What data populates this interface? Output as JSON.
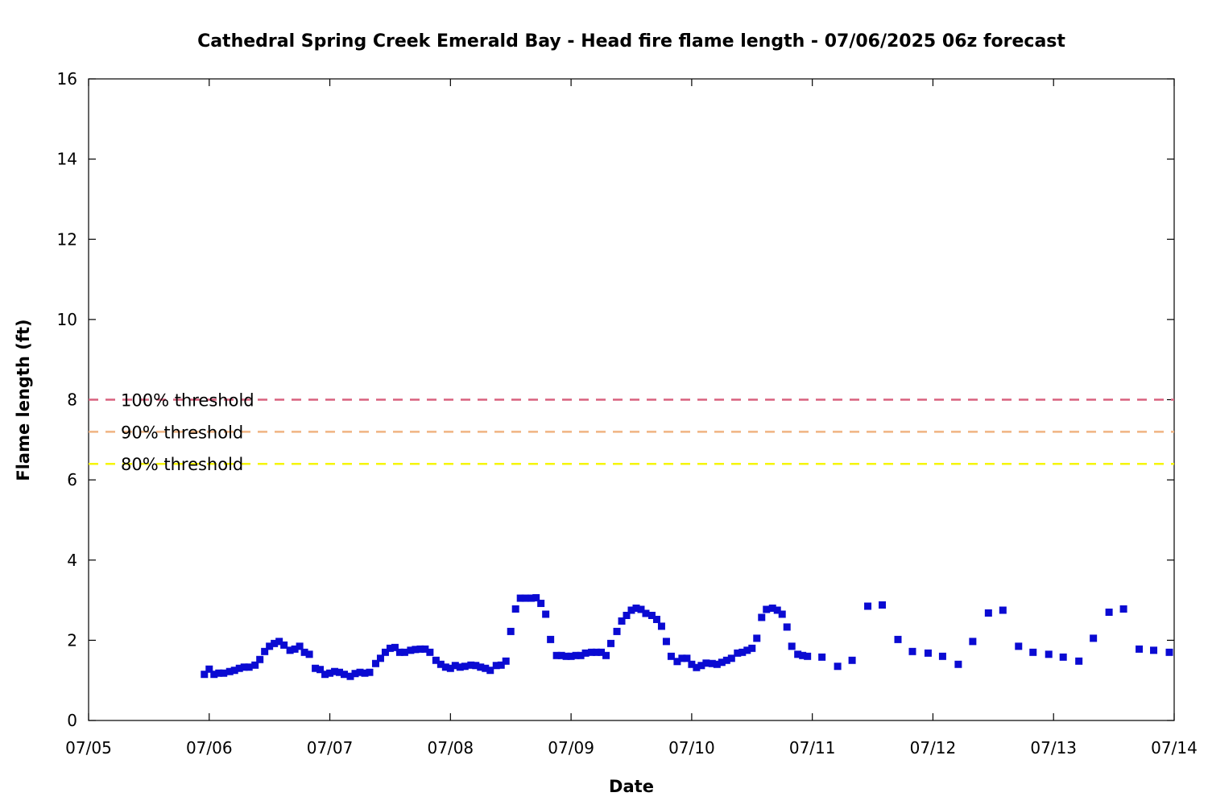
{
  "chart_data": {
    "type": "scatter",
    "title": "Cathedral Spring Creek Emerald Bay - Head fire flame length - 07/06/2025 06z forecast",
    "xlabel": "Date",
    "ylabel": "Flame length (ft)",
    "x_tick_labels": [
      "07/05",
      "07/06",
      "07/07",
      "07/08",
      "07/09",
      "07/10",
      "07/11",
      "07/12",
      "07/13",
      "07/14"
    ],
    "y_ticks": [
      0,
      2,
      4,
      6,
      8,
      10,
      12,
      14,
      16
    ],
    "xlim": [
      "07/05",
      "07/14"
    ],
    "ylim": [
      0,
      16
    ],
    "grid": false,
    "thresholds": [
      {
        "label": "100% threshold",
        "value": 8.0,
        "color": "#d9607e"
      },
      {
        "label": "90% threshold",
        "value": 7.2,
        "color": "#f0b482"
      },
      {
        "label": "80% threshold",
        "value": 6.4,
        "color": "#f5f50a"
      }
    ],
    "series": [
      {
        "color": "#0a0ad2",
        "points_note_units": "x = day index after 07/05 00z (07/05 = 0, 07/14 = 9)",
        "x": [
          0.96,
          1.0,
          1.04,
          1.08,
          1.12,
          1.17,
          1.21,
          1.25,
          1.29,
          1.33,
          1.38,
          1.42,
          1.46,
          1.5,
          1.54,
          1.58,
          1.62,
          1.67,
          1.71,
          1.75,
          1.79,
          1.83,
          1.88,
          1.92,
          1.96,
          2.0,
          2.04,
          2.08,
          2.12,
          2.17,
          2.21,
          2.25,
          2.29,
          2.33,
          2.38,
          2.42,
          2.46,
          2.5,
          2.54,
          2.58,
          2.62,
          2.67,
          2.71,
          2.75,
          2.79,
          2.83,
          2.88,
          2.92,
          2.96,
          3.0,
          3.04,
          3.08,
          3.12,
          3.17,
          3.21,
          3.25,
          3.29,
          3.33,
          3.38,
          3.42,
          3.46,
          3.5,
          3.54,
          3.58,
          3.62,
          3.67,
          3.71,
          3.75,
          3.79,
          3.83,
          3.88,
          3.92,
          3.96,
          4.0,
          4.04,
          4.08,
          4.12,
          4.17,
          4.21,
          4.25,
          4.29,
          4.33,
          4.38,
          4.42,
          4.46,
          4.5,
          4.54,
          4.58,
          4.62,
          4.67,
          4.71,
          4.75,
          4.79,
          4.83,
          4.88,
          4.92,
          4.96,
          5.0,
          5.04,
          5.08,
          5.12,
          5.17,
          5.21,
          5.25,
          5.29,
          5.33,
          5.38,
          5.42,
          5.46,
          5.5,
          5.54,
          5.58,
          5.62,
          5.67,
          5.71,
          5.75,
          5.79,
          5.83,
          5.88,
          5.92,
          5.96,
          6.08,
          6.21,
          6.33,
          6.46,
          6.58,
          6.71,
          6.83,
          6.96,
          7.08,
          7.21,
          7.33,
          7.46,
          7.58,
          7.71,
          7.83,
          7.96,
          8.08,
          8.21,
          8.33,
          8.46,
          8.58,
          8.71,
          8.83,
          8.96
        ],
        "y": [
          1.15,
          1.28,
          1.15,
          1.18,
          1.18,
          1.22,
          1.25,
          1.3,
          1.33,
          1.33,
          1.38,
          1.52,
          1.72,
          1.85,
          1.92,
          1.97,
          1.88,
          1.75,
          1.78,
          1.85,
          1.7,
          1.65,
          1.3,
          1.27,
          1.15,
          1.18,
          1.22,
          1.2,
          1.15,
          1.1,
          1.17,
          1.2,
          1.18,
          1.2,
          1.42,
          1.55,
          1.7,
          1.8,
          1.82,
          1.7,
          1.7,
          1.75,
          1.77,
          1.78,
          1.78,
          1.7,
          1.5,
          1.4,
          1.33,
          1.3,
          1.37,
          1.33,
          1.35,
          1.38,
          1.37,
          1.33,
          1.3,
          1.25,
          1.37,
          1.38,
          1.48,
          2.22,
          2.78,
          3.05,
          3.05,
          3.05,
          3.06,
          2.92,
          2.65,
          2.02,
          1.62,
          1.62,
          1.6,
          1.6,
          1.62,
          1.62,
          1.68,
          1.7,
          1.7,
          1.7,
          1.62,
          1.92,
          2.22,
          2.48,
          2.62,
          2.75,
          2.8,
          2.77,
          2.67,
          2.62,
          2.52,
          2.35,
          1.97,
          1.6,
          1.47,
          1.55,
          1.55,
          1.4,
          1.32,
          1.37,
          1.43,
          1.42,
          1.4,
          1.45,
          1.5,
          1.55,
          1.68,
          1.7,
          1.75,
          1.8,
          2.05,
          2.57,
          2.77,
          2.8,
          2.75,
          2.65,
          2.33,
          1.85,
          1.65,
          1.62,
          1.6,
          1.58,
          1.35,
          1.5,
          2.85,
          2.88,
          2.02,
          1.72,
          1.68,
          1.6,
          1.4,
          1.97,
          2.68,
          2.75,
          1.85,
          1.7,
          1.65,
          1.58,
          1.48,
          2.05,
          2.7,
          2.78,
          1.78,
          1.75,
          1.7
        ]
      }
    ]
  }
}
